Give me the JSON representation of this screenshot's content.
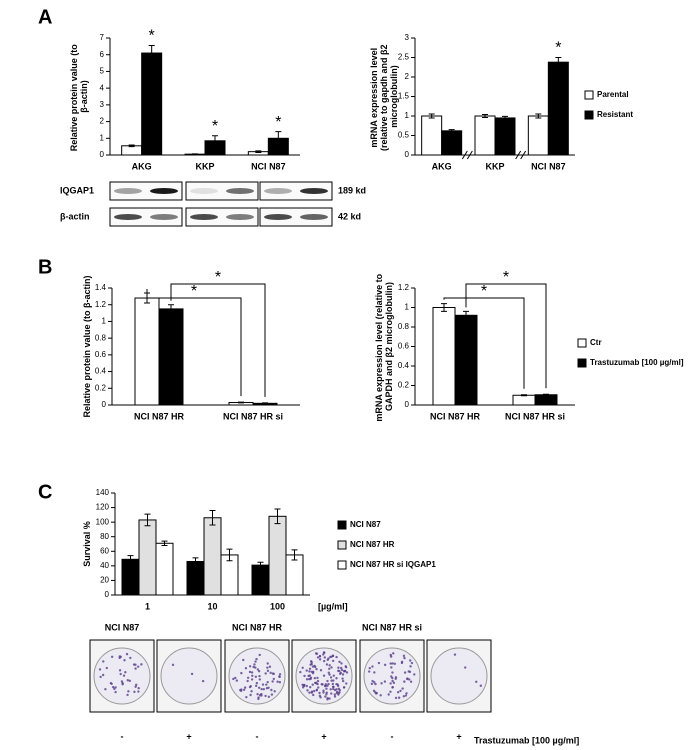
{
  "panels": [
    "A",
    "B",
    "C"
  ],
  "blots": {
    "rows": [
      {
        "label": "IQGAP1",
        "size": "189 kd"
      },
      {
        "label": "β-actin",
        "size": "42 kd"
      }
    ]
  },
  "plates": {
    "groups": [
      "NCI N87",
      "NCI N87 HR",
      "NCI N87 HR si"
    ],
    "signs": [
      "-",
      "+",
      "-",
      "+",
      "-",
      "+"
    ],
    "label": "Trastuzumab [100 µg/ml]"
  },
  "chart_data": [
    {
      "type": "bar",
      "ylabel": "Relative protein value (to β-actin)",
      "categories": [
        "AKG",
        "KKP",
        "NCI N87"
      ],
      "series": [
        {
          "color": "#ffffff",
          "values": [
            0.55,
            0.05,
            0.2
          ],
          "errors": [
            0.05,
            0.02,
            0.05
          ]
        },
        {
          "color": "#000000",
          "values": [
            6.1,
            0.85,
            1.0
          ],
          "errors": [
            0.45,
            0.3,
            0.4
          ]
        }
      ],
      "annotations": [
        "*",
        "*",
        "*"
      ],
      "ylim": [
        0,
        7
      ],
      "yticks": [
        0,
        1,
        2,
        3,
        4,
        5,
        6,
        7
      ]
    },
    {
      "type": "bar",
      "ylabel": "mRNA expression level (relative to gapdh and β2 microglobulin)",
      "categories": [
        "AKG",
        "KKP",
        "NCI N87"
      ],
      "series": [
        {
          "name": "Parental",
          "color": "#ffffff",
          "values": [
            1.0,
            1.0,
            1.0
          ],
          "errors": [
            0.05,
            0.04,
            0.05
          ]
        },
        {
          "name": "Resistant",
          "color": "#000000",
          "values": [
            0.62,
            0.95,
            2.38
          ],
          "errors": [
            0.03,
            0.04,
            0.12
          ]
        }
      ],
      "annotations": [
        "*"
      ],
      "ylim": [
        0,
        3
      ],
      "yticks": [
        0,
        0.5,
        1,
        1.5,
        2,
        2.5,
        3
      ],
      "axis_breaks": true,
      "legend": "right"
    },
    {
      "type": "bar",
      "ylabel": "Relative protein value (to β-actin)",
      "categories": [
        "NCI N87 HR",
        "NCI N87 HR si"
      ],
      "series": [
        {
          "color": "#ffffff",
          "values": [
            1.28,
            0.03
          ],
          "errors": [
            0.06,
            0.005
          ]
        },
        {
          "color": "#000000",
          "values": [
            1.15,
            0.02
          ],
          "errors": [
            0.05,
            0.005
          ]
        }
      ],
      "annotations": [
        "*",
        "*"
      ],
      "ylim": [
        0,
        1.4
      ],
      "yticks": [
        0,
        0.2,
        0.4,
        0.6,
        0.8,
        1,
        1.2,
        1.4
      ]
    },
    {
      "type": "bar",
      "ylabel": "mRNA expression level (relative to GAPDH and β2 microglobulin)",
      "categories": [
        "NCI N87 HR",
        "NCI N87 HR si"
      ],
      "series": [
        {
          "name": "Ctr",
          "color": "#ffffff",
          "values": [
            1.0,
            0.1
          ],
          "errors": [
            0.04,
            0.005
          ]
        },
        {
          "name": "Trastuzumab [100 µg/ml]",
          "color": "#000000",
          "values": [
            0.92,
            0.105
          ],
          "errors": [
            0.04,
            0.005
          ]
        }
      ],
      "annotations": [
        "*",
        "*"
      ],
      "ylim": [
        0,
        1.2
      ],
      "yticks": [
        0,
        0.2,
        0.4,
        0.6,
        0.8,
        1,
        1.2
      ],
      "legend": "right"
    },
    {
      "type": "bar",
      "ylabel": "Survival %",
      "xlabel": "[µg/ml]",
      "categories": [
        "1",
        "10",
        "100"
      ],
      "series": [
        {
          "name": "NCI N87",
          "color": "#000000",
          "values": [
            49,
            46,
            41
          ],
          "errors": [
            5,
            5,
            4
          ]
        },
        {
          "name": "NCI N87 HR",
          "color": "#e0e0e0",
          "values": [
            103,
            106,
            108
          ],
          "errors": [
            8,
            10,
            10
          ]
        },
        {
          "name": "NCI N87 HR si IQGAP1",
          "color": "#ffffff",
          "values": [
            71,
            55,
            55
          ],
          "errors": [
            3,
            8,
            7
          ]
        }
      ],
      "ylim": [
        0,
        140
      ],
      "yticks": [
        0,
        20,
        40,
        60,
        80,
        100,
        120,
        140
      ],
      "legend": "right"
    }
  ]
}
